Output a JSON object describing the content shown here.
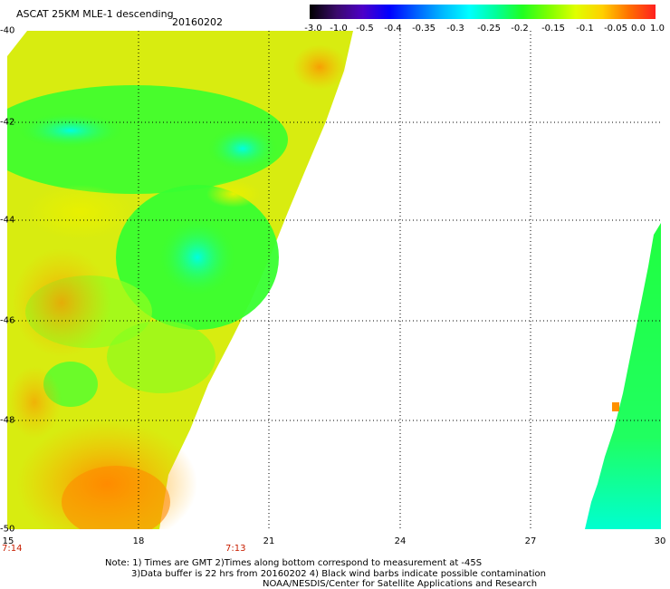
{
  "header": {
    "title": "ASCAT 25KM MLE-1 descending",
    "date": "20160202"
  },
  "colorbar": {
    "labels": [
      "-3.0",
      "-1.0",
      "-0.5",
      "-0.4",
      "-0.35",
      "-0.3",
      "-0.25",
      "-0.2",
      "-0.15",
      "-0.1",
      "-0.05",
      "0.0",
      "1.0"
    ]
  },
  "map": {
    "lat_labels": [
      "-40",
      "-42",
      "-44",
      "-46",
      "-48",
      "-50"
    ],
    "lon_labels": [
      "15",
      "18",
      "21",
      "24",
      "27",
      "30"
    ],
    "time_labels": [
      "7:14",
      "7:13"
    ],
    "colors": {
      "orange": "#ff8c00",
      "yellow": "#f0e800",
      "green": "#40ff20",
      "cyan": "#00ffd8"
    }
  },
  "notes": {
    "line1": "Note: 1) Times are GMT 2)Times along bottom correspond to measurement at -45S",
    "line2": "3)Data buffer is 22 hrs from 20160202 4) Black wind barbs indicate possible contamination",
    "line3": "NOAA/NESDIS/Center for Satellite Applications and Research"
  }
}
